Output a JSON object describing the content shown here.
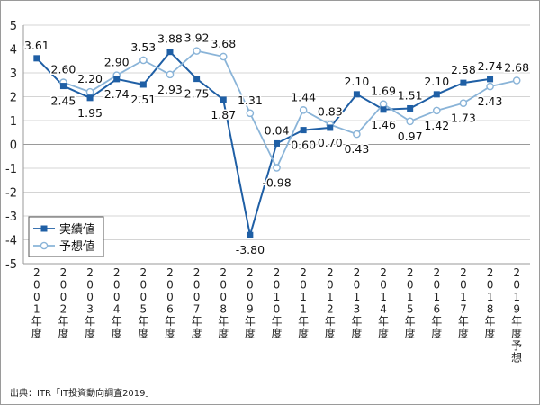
{
  "chart_data": {
    "type": "line",
    "ylim": [
      -5,
      5
    ],
    "yticks": [
      5,
      4,
      3,
      2,
      1,
      0,
      -1,
      -2,
      -3,
      -4,
      -5
    ],
    "grid": "horizontal",
    "legend_position": "bottom-left",
    "categories": [
      "2001年度",
      "2002年度",
      "2003年度",
      "2004年度",
      "2005年度",
      "2006年度",
      "2007年度",
      "2008年度",
      "2009年度",
      "2010年度",
      "2011年度",
      "2012年度",
      "2013年度",
      "2014年度",
      "2015年度",
      "2016年度",
      "2017年度",
      "2018年度",
      "2019年度予想"
    ],
    "series": [
      {
        "name": "実績値",
        "color": "#1f5fa5",
        "marker": "square",
        "values": [
          3.61,
          2.45,
          1.95,
          2.74,
          2.51,
          3.88,
          2.75,
          1.87,
          -3.8,
          0.04,
          0.6,
          0.7,
          2.1,
          1.46,
          1.51,
          2.1,
          2.58,
          2.74,
          null
        ],
        "labels": [
          "3.61",
          "2.45",
          "1.95",
          "2.74",
          "2.51",
          "3.88",
          "2.75",
          "1.87",
          "-3.80",
          "0.04",
          "0.60",
          "0.70",
          "2.10",
          "1.46",
          "1.51",
          "2.10",
          "2.58",
          "2.74",
          null
        ]
      },
      {
        "name": "予想値",
        "color": "#8ab4d8",
        "marker": "circle",
        "values": [
          null,
          2.6,
          2.2,
          2.9,
          3.53,
          2.93,
          3.92,
          3.68,
          1.31,
          -0.98,
          1.44,
          0.83,
          0.43,
          1.69,
          0.97,
          1.42,
          1.73,
          2.43,
          2.68
        ],
        "labels": [
          null,
          "2.60",
          "2.20",
          "2.90",
          "3.53",
          "2.93",
          "3.92",
          "3.68",
          "1.31",
          "-0.98",
          "1.44",
          "0.83",
          "0.43",
          "1.69",
          "0.97",
          "1.42",
          "1.73",
          "2.43",
          "2.68"
        ]
      }
    ]
  },
  "source": "出典：ITR「IT投資動向調査2019」"
}
